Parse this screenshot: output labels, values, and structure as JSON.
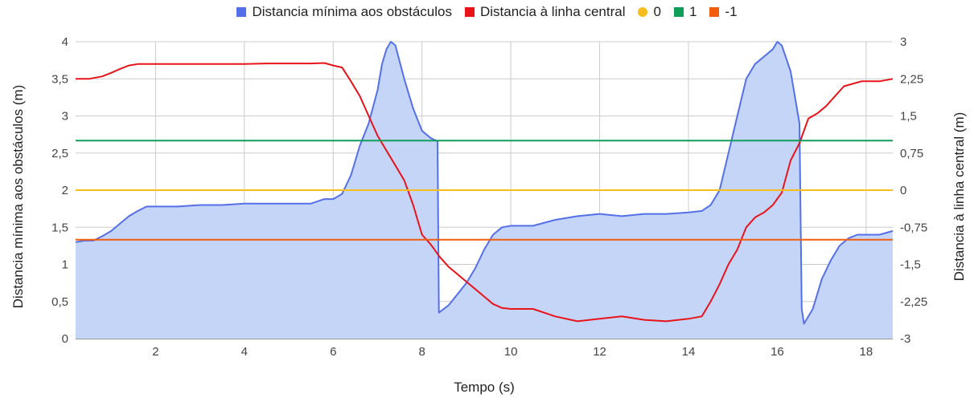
{
  "chart_data": {
    "type": "line",
    "xlabel": "Tempo (s)",
    "ylabel_left": "Distancia mínima aos obstáculos (m)",
    "ylabel_right": "Distancia à linha central (m)",
    "xlim": [
      0.2,
      18.6
    ],
    "ylim_left": [
      0,
      4
    ],
    "ylim_right": [
      -3,
      3
    ],
    "x_ticks": [
      "2",
      "4",
      "6",
      "8",
      "10",
      "12",
      "14",
      "16",
      "18"
    ],
    "x_tick_values": [
      2,
      4,
      6,
      8,
      10,
      12,
      14,
      16,
      18
    ],
    "y_left_ticks": [
      "0",
      "0,5",
      "1",
      "1,5",
      "2",
      "2,5",
      "3",
      "3,5",
      "4"
    ],
    "y_left_values": [
      0,
      0.5,
      1,
      1.5,
      2,
      2.5,
      3,
      3.5,
      4
    ],
    "y_right_ticks": [
      "-3",
      "-2,25",
      "-1,5",
      "-0,75",
      "0",
      "0,75",
      "1,5",
      "2,25",
      "3"
    ],
    "y_right_values": [
      -3,
      -2.25,
      -1.5,
      -0.75,
      0,
      0.75,
      1.5,
      2.25,
      3
    ],
    "grid": true,
    "legend_position": "top",
    "series": [
      {
        "name": "Distancia mínima aos obstáculos",
        "type": "area",
        "axis": "left",
        "color": "#5470e8",
        "fill": "#c5d5f8",
        "x": [
          0.2,
          0.4,
          0.6,
          0.8,
          1.0,
          1.2,
          1.4,
          1.6,
          1.8,
          2.0,
          2.5,
          3.0,
          3.5,
          4.0,
          4.5,
          5.0,
          5.5,
          5.8,
          6.0,
          6.2,
          6.4,
          6.6,
          6.8,
          7.0,
          7.1,
          7.2,
          7.3,
          7.4,
          7.6,
          7.8,
          8.0,
          8.2,
          8.35,
          8.38,
          8.6,
          8.8,
          9.0,
          9.2,
          9.4,
          9.6,
          9.8,
          10.0,
          10.5,
          11.0,
          11.5,
          12.0,
          12.5,
          13.0,
          13.5,
          14.0,
          14.3,
          14.5,
          14.7,
          14.9,
          15.1,
          15.3,
          15.5,
          15.7,
          15.9,
          16.0,
          16.1,
          16.3,
          16.5,
          16.55,
          16.6,
          16.8,
          17.0,
          17.2,
          17.4,
          17.6,
          17.8,
          18.0,
          18.3,
          18.6
        ],
        "values": [
          1.3,
          1.32,
          1.32,
          1.38,
          1.45,
          1.55,
          1.65,
          1.72,
          1.78,
          1.78,
          1.78,
          1.8,
          1.8,
          1.82,
          1.82,
          1.82,
          1.82,
          1.88,
          1.88,
          1.95,
          2.2,
          2.6,
          2.9,
          3.35,
          3.7,
          3.9,
          4.0,
          3.95,
          3.5,
          3.1,
          2.8,
          2.7,
          2.66,
          0.35,
          0.45,
          0.6,
          0.75,
          0.95,
          1.2,
          1.4,
          1.5,
          1.52,
          1.52,
          1.6,
          1.65,
          1.68,
          1.65,
          1.68,
          1.68,
          1.7,
          1.72,
          1.8,
          2.0,
          2.5,
          3.0,
          3.5,
          3.7,
          3.8,
          3.9,
          4.0,
          3.95,
          3.6,
          2.9,
          0.4,
          0.2,
          0.4,
          0.8,
          1.05,
          1.25,
          1.35,
          1.4,
          1.4,
          1.4,
          1.45
        ]
      },
      {
        "name": "Distancia à linha central",
        "type": "line",
        "axis": "right",
        "color": "#e8141a",
        "x": [
          0.2,
          0.5,
          0.8,
          1.0,
          1.2,
          1.4,
          1.6,
          2.0,
          2.5,
          3.0,
          3.5,
          4.0,
          4.5,
          5.0,
          5.5,
          5.8,
          6.0,
          6.2,
          6.4,
          6.6,
          6.8,
          7.0,
          7.2,
          7.4,
          7.6,
          7.8,
          8.0,
          8.2,
          8.4,
          8.6,
          8.8,
          9.0,
          9.2,
          9.4,
          9.6,
          9.8,
          10.0,
          10.5,
          11.0,
          11.5,
          12.0,
          12.5,
          13.0,
          13.5,
          14.0,
          14.3,
          14.5,
          14.7,
          14.9,
          15.1,
          15.3,
          15.5,
          15.7,
          15.9,
          16.1,
          16.3,
          16.5,
          16.7,
          16.9,
          17.1,
          17.3,
          17.5,
          17.7,
          17.9,
          18.1,
          18.3,
          18.6
        ],
        "values": [
          2.25,
          2.25,
          2.3,
          2.37,
          2.45,
          2.52,
          2.55,
          2.55,
          2.55,
          2.55,
          2.55,
          2.55,
          2.56,
          2.56,
          2.56,
          2.57,
          2.52,
          2.48,
          2.2,
          1.9,
          1.5,
          1.1,
          0.8,
          0.5,
          0.2,
          -0.3,
          -0.9,
          -1.1,
          -1.35,
          -1.55,
          -1.7,
          -1.85,
          -2.0,
          -2.15,
          -2.3,
          -2.38,
          -2.4,
          -2.4,
          -2.55,
          -2.65,
          -2.6,
          -2.55,
          -2.62,
          -2.65,
          -2.6,
          -2.55,
          -2.25,
          -1.9,
          -1.5,
          -1.2,
          -0.75,
          -0.55,
          -0.45,
          -0.3,
          -0.05,
          0.6,
          0.95,
          1.45,
          1.55,
          1.7,
          1.9,
          2.1,
          2.15,
          2.2,
          2.2,
          2.2,
          2.25
        ]
      },
      {
        "name": "0",
        "type": "line",
        "axis": "right",
        "color": "#f7bd1c",
        "x": [
          0.2,
          18.6
        ],
        "values": [
          0,
          0
        ]
      },
      {
        "name": "1",
        "type": "line",
        "axis": "right",
        "color": "#0f9d58",
        "x": [
          0.2,
          18.6
        ],
        "values": [
          1,
          1
        ]
      },
      {
        "name": "-1",
        "type": "line",
        "axis": "right",
        "color": "#f45d0c",
        "x": [
          0.2,
          18.6
        ],
        "values": [
          -1,
          -1
        ]
      }
    ]
  }
}
